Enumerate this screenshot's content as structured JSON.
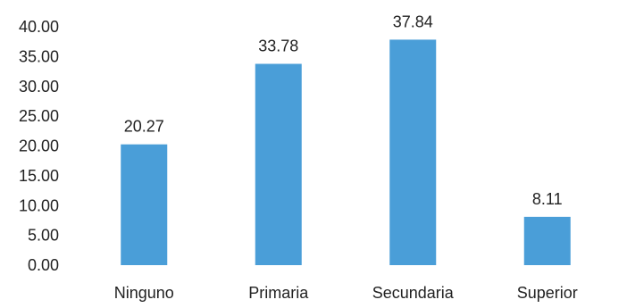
{
  "chart_data": {
    "type": "bar",
    "title": "",
    "xlabel": "",
    "ylabel": "",
    "categories": [
      "Ninguno",
      "Primaria",
      "Secundaria",
      "Superior"
    ],
    "values": [
      20.27,
      33.78,
      37.84,
      8.11
    ],
    "data_labels": [
      "20.27",
      "33.78",
      "37.84",
      "8.11"
    ],
    "ylim": [
      0,
      40
    ],
    "yticks": [
      0,
      5,
      10,
      15,
      20,
      25,
      30,
      35,
      40
    ],
    "ytick_labels": [
      "0.00",
      "5.00",
      "10.00",
      "15.00",
      "20.00",
      "25.00",
      "30.00",
      "35.00",
      "40.00"
    ],
    "grid": false,
    "legend": "none",
    "bar_color": "#4a9ed8"
  }
}
